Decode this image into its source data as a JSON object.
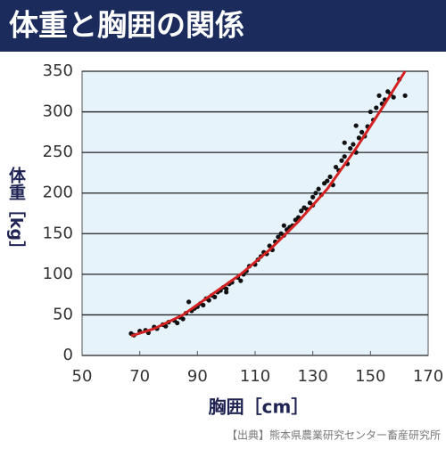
{
  "chart_data": {
    "type": "scatter",
    "title": "体重と胸囲の関係",
    "xlabel": "胸囲［cm］",
    "ylabel": "体重［kg］",
    "source": "【出典】熊本県農業研究センター畜産研究所",
    "xlim": [
      50,
      170
    ],
    "xticks": [
      50,
      70,
      90,
      110,
      130,
      150,
      170
    ],
    "ylim": [
      0,
      350
    ],
    "yticks": [
      0,
      50,
      100,
      150,
      200,
      250,
      300,
      350
    ],
    "grid": "y",
    "background": "#e6f3fb",
    "series": [
      {
        "mode": "markers",
        "color": "#111111",
        "x": [
          67,
          68,
          70,
          72,
          73,
          75,
          76,
          78,
          79,
          80,
          82,
          83,
          84,
          85,
          86,
          87,
          88,
          89,
          90,
          91,
          92,
          93,
          94,
          95,
          96,
          97,
          98,
          99,
          100,
          101,
          102,
          104,
          105,
          106,
          107,
          108,
          110,
          111,
          112,
          113,
          114,
          115,
          116,
          117,
          118,
          119,
          120,
          121,
          122,
          123,
          124,
          125,
          126,
          127,
          128,
          129,
          130,
          131,
          132,
          133,
          134,
          135,
          136,
          137,
          138,
          139,
          140,
          141,
          142,
          143,
          144,
          145,
          146,
          147,
          148,
          149,
          150,
          151,
          152,
          153,
          154,
          155,
          156,
          157,
          158,
          160,
          162,
          141,
          145,
          130,
          120,
          100
        ],
        "values": [
          27,
          25,
          30,
          31,
          28,
          35,
          33,
          38,
          36,
          41,
          43,
          40,
          47,
          45,
          52,
          66,
          55,
          58,
          60,
          64,
          62,
          70,
          68,
          74,
          72,
          78,
          80,
          84,
          82,
          88,
          90,
          96,
          92,
          100,
          104,
          110,
          112,
          118,
          122,
          127,
          125,
          135,
          130,
          140,
          146,
          150,
          148,
          155,
          158,
          160,
          167,
          170,
          178,
          182,
          180,
          188,
          195,
          200,
          205,
          198,
          212,
          215,
          220,
          210,
          232,
          228,
          240,
          245,
          236,
          255,
          260,
          250,
          268,
          275,
          270,
          282,
          300,
          290,
          305,
          320,
          310,
          315,
          325,
          322,
          318,
          340,
          320,
          262,
          283,
          185,
          160,
          78
        ]
      },
      {
        "mode": "line",
        "color": "#d42222",
        "x": [
          67,
          75,
          85,
          95,
          105,
          115,
          125,
          135,
          145,
          155,
          162
        ],
        "values": [
          24,
          33,
          50,
          75,
          100,
          130,
          165,
          205,
          255,
          310,
          350
        ]
      }
    ]
  }
}
